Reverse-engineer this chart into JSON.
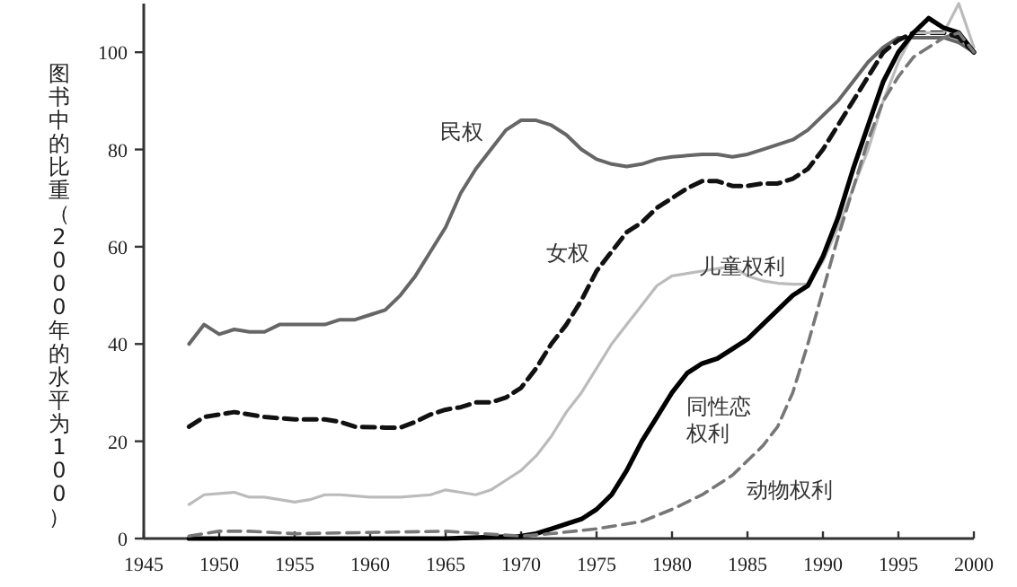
{
  "chart_data": {
    "type": "line",
    "ylabel": "图书中的比重（2000年的水平为100）",
    "xlim": [
      1945,
      2000
    ],
    "ylim": [
      0,
      110
    ],
    "xticks": [
      1945,
      1950,
      1955,
      1960,
      1965,
      1970,
      1975,
      1980,
      1985,
      1990,
      1995,
      2000
    ],
    "yticks": [
      0,
      20,
      40,
      60,
      80,
      100
    ],
    "grid": false,
    "marker": "none",
    "series": [
      {
        "color": "#666666",
        "line_style": "solid",
        "x": [
          1948,
          1949,
          1950,
          1951,
          1952,
          1953,
          1954,
          1956,
          1957,
          1958,
          1959,
          1960,
          1961,
          1962,
          1963,
          1964,
          1965,
          1966,
          1967,
          1968,
          1969,
          1970,
          1971,
          1972,
          1973,
          1974,
          1975,
          1976,
          1977,
          1978,
          1979,
          1980,
          1982,
          1983,
          1984,
          1985,
          1986,
          1987,
          1988,
          1989,
          1990,
          1991,
          1992,
          1993,
          1994,
          1995,
          1996,
          1997,
          1998,
          1999,
          2000
        ],
        "values": [
          40,
          44,
          42,
          43,
          42.5,
          42.5,
          44,
          44,
          44,
          45,
          45,
          46,
          47,
          50,
          54,
          59,
          64,
          71,
          76,
          80,
          84,
          86,
          86,
          85,
          83,
          80,
          78,
          77,
          76.5,
          77,
          78,
          78.5,
          79,
          79,
          78.5,
          79,
          80,
          81,
          82,
          84,
          87,
          90,
          94,
          98,
          101,
          103,
          103,
          103,
          103,
          102,
          100
        ]
      },
      {
        "color": "#111111",
        "line_style": "dashed",
        "x": [
          1948,
          1949,
          1951,
          1953,
          1955,
          1957,
          1958,
          1959,
          1961,
          1962,
          1963,
          1964,
          1965,
          1966,
          1967,
          1968,
          1969,
          1970,
          1971,
          1972,
          1973,
          1974,
          1975,
          1976,
          1977,
          1978,
          1979,
          1980,
          1981,
          1982,
          1983,
          1984,
          1985,
          1986,
          1987,
          1988,
          1989,
          1990,
          1991,
          1992,
          1993,
          1994,
          1995,
          1996,
          1997,
          1998,
          1999,
          2000
        ],
        "values": [
          23,
          25,
          26,
          25,
          24.5,
          24.5,
          24,
          23,
          22.8,
          22.8,
          24,
          25.5,
          26.5,
          27,
          28,
          28,
          29,
          31,
          35,
          40,
          44,
          49,
          55,
          59,
          63,
          65,
          68,
          70,
          72,
          73.5,
          73.5,
          72.5,
          72.5,
          73,
          73,
          74,
          76,
          80,
          85,
          90,
          95,
          100,
          102.5,
          104,
          104,
          104,
          103,
          100
        ]
      },
      {
        "color": "#bbbbbb",
        "line_style": "solid",
        "x": [
          1948,
          1949,
          1951,
          1952,
          1953,
          1955,
          1956,
          1957,
          1958,
          1960,
          1962,
          1964,
          1965,
          1966,
          1967,
          1968,
          1969,
          1970,
          1971,
          1972,
          1973,
          1974,
          1975,
          1976,
          1977,
          1978,
          1979,
          1980,
          1981,
          1982,
          1983,
          1984,
          1985,
          1986,
          1987,
          1988,
          1989,
          1990,
          1991,
          1992,
          1993,
          1994,
          1995,
          1996,
          1997,
          1998,
          1999,
          2000
        ],
        "values": [
          7,
          9,
          9.5,
          8.5,
          8.5,
          7.5,
          8,
          9,
          9,
          8.5,
          8.5,
          9,
          10,
          9.5,
          9,
          10,
          12,
          14,
          17,
          21,
          26,
          30,
          35,
          40,
          44,
          48,
          52,
          54,
          54.5,
          55,
          55.5,
          56,
          54,
          53,
          52.5,
          52.3,
          52.3,
          57,
          64,
          72,
          80,
          90,
          98,
          104,
          104,
          104,
          110,
          101
        ]
      },
      {
        "color": "#000000",
        "line_style": "solid",
        "x": [
          1948,
          1965,
          1970,
          1971,
          1972,
          1973,
          1974,
          1975,
          1976,
          1977,
          1978,
          1979,
          1980,
          1981,
          1982,
          1983,
          1984,
          1985,
          1986,
          1987,
          1988,
          1989,
          1990,
          1991,
          1992,
          1993,
          1994,
          1995,
          1996,
          1997,
          1998,
          1999,
          2000
        ],
        "values": [
          0,
          0,
          0.5,
          1,
          2,
          3,
          4,
          6,
          9,
          14,
          20,
          25,
          30,
          34,
          36,
          37,
          39,
          41,
          44,
          47,
          50,
          52,
          58,
          66,
          76,
          85,
          94,
          100,
          104,
          107,
          105,
          104,
          100
        ]
      },
      {
        "color": "#777777",
        "line_style": "dashed",
        "x": [
          1948,
          1950,
          1952,
          1955,
          1965,
          1970,
          1972,
          1975,
          1978,
          1980,
          1982,
          1984,
          1986,
          1987,
          1988,
          1989,
          1990,
          1991,
          1992,
          1993,
          1994,
          1995,
          1996,
          1997,
          1998,
          1999,
          2000
        ],
        "values": [
          0.5,
          1.5,
          1.5,
          1,
          1.5,
          0.5,
          1,
          2,
          3.5,
          6,
          9,
          13,
          19,
          23,
          30,
          40,
          51,
          62,
          72,
          82,
          90,
          95,
          99,
          101,
          103,
          104,
          100
        ]
      }
    ],
    "annotations": [
      {
        "text": "民权",
        "x": 1968,
        "y": 80
      },
      {
        "text": "女权",
        "x": 1975,
        "y": 55
      },
      {
        "text": "儿童权利",
        "x": 1988,
        "y": 52.3
      },
      {
        "text": "同性恋权利",
        "x": 1980,
        "y": 30
      },
      {
        "text": "动物权利",
        "x": 1984,
        "y": 13
      }
    ]
  }
}
